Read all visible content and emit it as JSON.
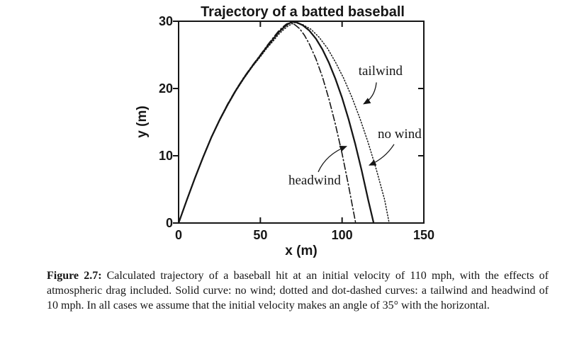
{
  "page": {
    "bg": "#ffffff",
    "ink": "#161616"
  },
  "chart_data": {
    "type": "line",
    "title": "Trajectory of a batted baseball",
    "xlabel": "x (m)",
    "ylabel": "y (m)",
    "xlim": [
      0,
      150
    ],
    "ylim": [
      0,
      30
    ],
    "x_ticks": [
      0,
      50,
      100,
      150
    ],
    "y_ticks": [
      0,
      10,
      20,
      30
    ],
    "grid": false,
    "box": true,
    "legend": "inline-annotations",
    "series": [
      {
        "name": "no wind",
        "style": "solid",
        "points": [
          [
            0,
            0
          ],
          [
            5,
            3.4
          ],
          [
            10,
            6.7
          ],
          [
            15,
            9.8
          ],
          [
            20,
            12.7
          ],
          [
            25,
            15.3
          ],
          [
            30,
            17.6
          ],
          [
            35,
            19.7
          ],
          [
            40,
            21.6
          ],
          [
            45,
            23.3
          ],
          [
            50,
            24.9
          ],
          [
            54,
            26.2
          ],
          [
            58,
            27.4
          ],
          [
            61,
            28.3
          ],
          [
            64,
            29.0
          ],
          [
            67,
            29.6
          ],
          [
            69.5,
            29.9
          ],
          [
            72,
            29.85
          ],
          [
            76,
            29.4
          ],
          [
            80,
            28.6
          ],
          [
            84,
            27.4
          ],
          [
            88,
            25.8
          ],
          [
            92,
            23.8
          ],
          [
            96,
            21.4
          ],
          [
            100,
            18.6
          ],
          [
            104,
            15.4
          ],
          [
            108,
            11.8
          ],
          [
            112,
            7.8
          ],
          [
            116,
            3.4
          ],
          [
            119.3,
            0
          ]
        ]
      },
      {
        "name": "tailwind",
        "style": "dotted",
        "points": [
          [
            0,
            0
          ],
          [
            5,
            3.4
          ],
          [
            10,
            6.7
          ],
          [
            15,
            9.8
          ],
          [
            20,
            12.65
          ],
          [
            25,
            15.2
          ],
          [
            30,
            17.5
          ],
          [
            35,
            19.6
          ],
          [
            40,
            21.5
          ],
          [
            45,
            23.2
          ],
          [
            50,
            24.7
          ],
          [
            54,
            26.0
          ],
          [
            58,
            27.1
          ],
          [
            61,
            28.0
          ],
          [
            64,
            28.7
          ],
          [
            67,
            29.3
          ],
          [
            71,
            29.8
          ],
          [
            76,
            29.5
          ],
          [
            81,
            28.8
          ],
          [
            86,
            27.6
          ],
          [
            91,
            26.0
          ],
          [
            96,
            23.9
          ],
          [
            101,
            21.5
          ],
          [
            106,
            18.7
          ],
          [
            111,
            15.5
          ],
          [
            116,
            11.9
          ],
          [
            121,
            7.9
          ],
          [
            126,
            3.5
          ],
          [
            128.8,
            0
          ]
        ]
      },
      {
        "name": "headwind",
        "style": "dash-dot",
        "points": [
          [
            0,
            0
          ],
          [
            5,
            3.4
          ],
          [
            10,
            6.7
          ],
          [
            15,
            9.85
          ],
          [
            20,
            12.75
          ],
          [
            25,
            15.35
          ],
          [
            30,
            17.7
          ],
          [
            35,
            19.8
          ],
          [
            40,
            21.7
          ],
          [
            45,
            23.4
          ],
          [
            50,
            25.0
          ],
          [
            54,
            26.35
          ],
          [
            58,
            27.6
          ],
          [
            61,
            28.5
          ],
          [
            63.5,
            29.1
          ],
          [
            66,
            29.6
          ],
          [
            68.5,
            29.8
          ],
          [
            71,
            29.5
          ],
          [
            74,
            28.9
          ],
          [
            77,
            27.9
          ],
          [
            80,
            26.6
          ],
          [
            84,
            24.4
          ],
          [
            88,
            21.7
          ],
          [
            92,
            18.4
          ],
          [
            96,
            14.6
          ],
          [
            100,
            10.3
          ],
          [
            104,
            5.5
          ],
          [
            107.5,
            1.0
          ],
          [
            108.3,
            0
          ]
        ]
      }
    ],
    "annotations": [
      {
        "label": "tailwind",
        "text_at": [
          110,
          22.6
        ],
        "arrow": {
          "from": [
            121,
            20.9
          ],
          "ctrl": [
            120.1,
            18.7
          ],
          "to": [
            113.2,
            17.7
          ]
        }
      },
      {
        "label": "no wind",
        "text_at": [
          121.8,
          13.2
        ],
        "arrow": {
          "from": [
            131.8,
            11.7
          ],
          "ctrl": [
            126.2,
            9.6
          ],
          "to": [
            116.6,
            8.6
          ]
        }
      },
      {
        "label": "headwind",
        "text_at": [
          67.2,
          6.3
        ],
        "arrow": {
          "from": [
            85.4,
            7.6
          ],
          "ctrl": [
            90.2,
            10.2
          ],
          "to": [
            102.7,
            11.4
          ]
        }
      }
    ]
  },
  "caption": {
    "label": "Figure 2.7:",
    "text": "Calculated trajectory of a baseball hit at an initial velocity of 110 mph, with the effects of atmospheric drag included. Solid curve: no wind; dotted and dot-dashed curves: a tailwind and headwind of 10 mph. In all cases we assume that the initial velocity makes an angle of 35° with the horizontal."
  }
}
